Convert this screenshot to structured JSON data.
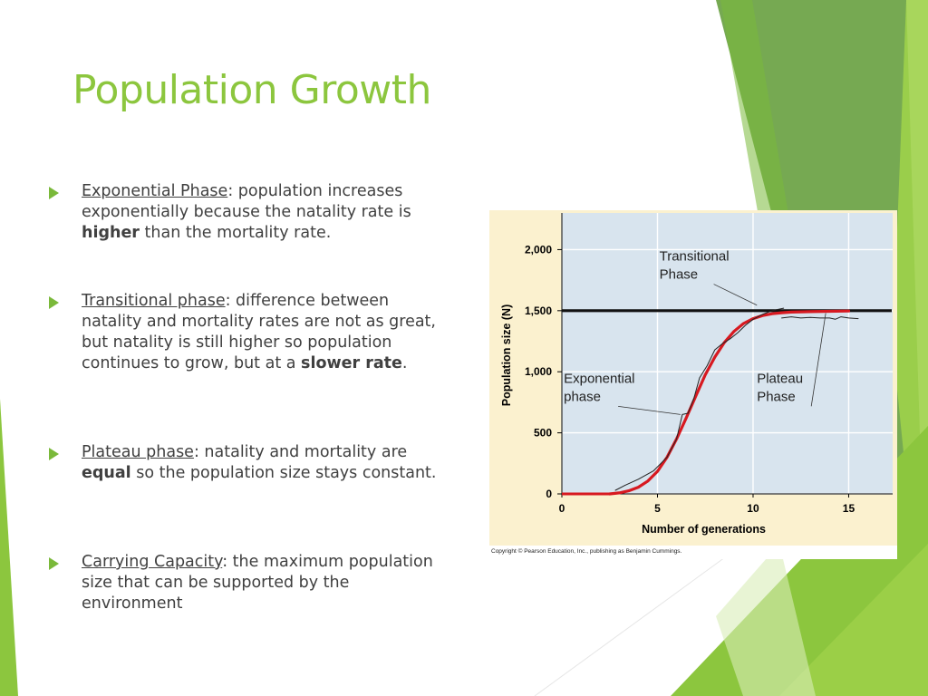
{
  "slide": {
    "title": "Population Growth",
    "accent_color": "#8cc63e",
    "bullet_icon": "triangle-right-icon"
  },
  "bullets": [
    {
      "term": "Exponential Phase",
      "text_a": ": population increases exponentially because the natality rate is ",
      "bold": "higher",
      "text_b": " than the mortality rate."
    },
    {
      "term": "Transitional phase",
      "text_a": ": difference between natality and mortality rates are not as great, but natality is still higher so population continues to grow, but at a ",
      "bold": "slower rate",
      "text_b": "."
    },
    {
      "term": "Plateau phase",
      "text_a": ": natality and mortality are ",
      "bold": "equal",
      "text_b": " so the population size stays constant."
    },
    {
      "term": "Carrying Capacity",
      "text_a": ": the maximum population size that can be supported by the environment",
      "bold": "",
      "text_b": ""
    }
  ],
  "figure": {
    "copyright": "Copyright © Pearson Education, Inc., publishing as Benjamin Cummings."
  },
  "chart_data": {
    "type": "line",
    "title": "",
    "xlabel": "Number of generations",
    "ylabel": "Population size (N)",
    "xlim": [
      0,
      17.3
    ],
    "ylim": [
      0,
      2300
    ],
    "x_ticks": [
      0,
      5,
      10,
      15
    ],
    "y_ticks": [
      0,
      500,
      1000,
      1500,
      2000
    ],
    "y_tick_labels": [
      "0",
      "500",
      "1,000",
      "1,500",
      "2,000"
    ],
    "grid": true,
    "carrying_capacity": 1500,
    "series": [
      {
        "role": "logistic-model",
        "color": "#d71920",
        "x": [
          2.5,
          3,
          3.5,
          4,
          4.5,
          5,
          5.5,
          6,
          6.5,
          7,
          7.5,
          8,
          8.5,
          9,
          9.5,
          10,
          10.5,
          11,
          11.5,
          12,
          13,
          14,
          15
        ],
        "values": [
          0,
          8,
          25,
          55,
          105,
          185,
          300,
          450,
          620,
          800,
          975,
          1120,
          1240,
          1330,
          1395,
          1435,
          1460,
          1475,
          1483,
          1488,
          1492,
          1495,
          1497
        ]
      },
      {
        "role": "observed-data",
        "color": "#222222",
        "x": [
          2.8,
          3.3,
          4,
          4.8,
          5.5,
          6,
          6.3,
          6.6,
          6.9,
          7.2,
          7.6,
          8,
          8.4,
          8.8,
          9.2,
          9.6,
          10,
          10.5,
          11,
          11.6
        ],
        "values": [
          30,
          70,
          120,
          190,
          300,
          450,
          650,
          660,
          780,
          950,
          1050,
          1180,
          1230,
          1270,
          1320,
          1380,
          1430,
          1470,
          1500,
          1520
        ]
      },
      {
        "role": "plateau-data",
        "color": "#222222",
        "x": [
          11.5,
          12,
          12.5,
          13,
          13.5,
          14,
          14.3,
          14.6,
          15,
          15.5
        ],
        "values": [
          1440,
          1450,
          1440,
          1445,
          1440,
          1440,
          1430,
          1450,
          1440,
          1435
        ]
      }
    ],
    "annotations": [
      {
        "label_lines": [
          "Transitional",
          "Phase"
        ],
        "label_x": 5.1,
        "label_y": 1910,
        "line_to": [
          10.2,
          1545
        ]
      },
      {
        "label_lines": [
          "Exponential",
          "phase"
        ],
        "label_x": 0.1,
        "label_y": 910,
        "line_to": [
          6.2,
          650
        ]
      },
      {
        "label_lines": [
          "Plateau",
          "Phase"
        ],
        "label_x": 10.2,
        "label_y": 910,
        "line_to": [
          13.8,
          1480
        ]
      }
    ]
  }
}
